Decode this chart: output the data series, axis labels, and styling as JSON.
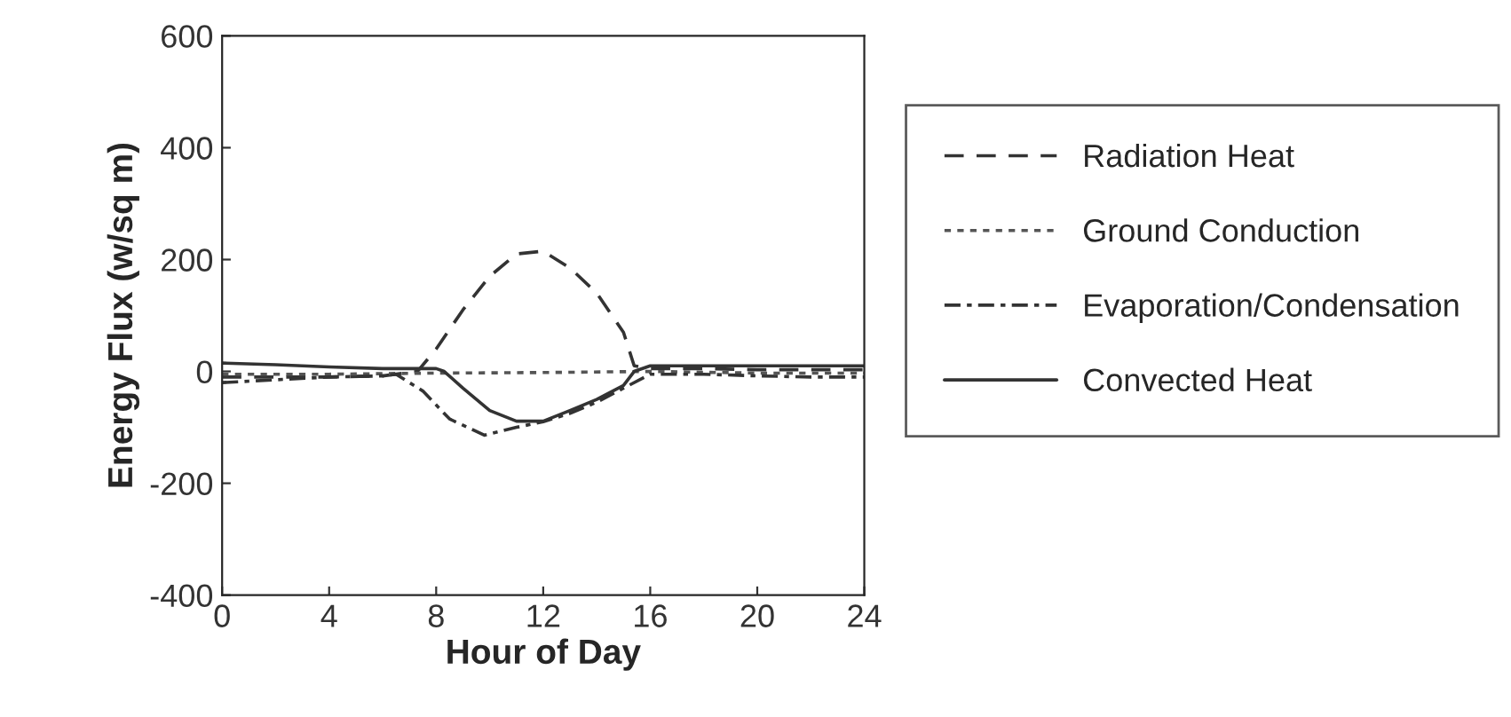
{
  "chart_data": {
    "type": "line",
    "xlabel": "Hour of Day",
    "ylabel": "Energy Flux (w/sq m)",
    "xlim": [
      0,
      24
    ],
    "xticks": [
      0,
      4,
      8,
      12,
      16,
      20,
      24
    ],
    "ylim": [
      -400,
      600
    ],
    "yticks": [
      -400,
      -200,
      0,
      200,
      400,
      600
    ],
    "grid": false,
    "legend": "right",
    "series": [
      {
        "name": "Radiation Heat",
        "color": "#333333",
        "line_style": "dashed",
        "x": [
          0,
          2,
          4,
          6,
          7.3,
          8,
          9,
          10,
          11,
          12,
          13,
          14,
          15,
          15.4,
          16,
          18,
          20,
          22,
          24
        ],
        "values": [
          -10,
          -10,
          -10,
          -8,
          0,
          40,
          110,
          170,
          210,
          215,
          185,
          140,
          70,
          10,
          5,
          5,
          3,
          3,
          3
        ]
      },
      {
        "name": "Ground Conduction",
        "color": "#555555",
        "line_style": "dotted",
        "x": [
          0,
          4,
          8,
          12,
          16,
          20,
          24
        ],
        "values": [
          -5,
          -5,
          -3,
          -2,
          0,
          -3,
          -3
        ]
      },
      {
        "name": "Evaporation/Condensation",
        "color": "#333333",
        "line_style": "dashdot",
        "x": [
          0,
          2,
          4,
          6,
          6.5,
          7.5,
          8.5,
          9.8,
          11,
          12,
          13,
          14,
          15,
          16,
          18,
          20,
          22,
          24
        ],
        "values": [
          -20,
          -15,
          -10,
          -8,
          -5,
          -35,
          -85,
          -114,
          -100,
          -90,
          -75,
          -55,
          -30,
          -5,
          -5,
          -8,
          -10,
          -10
        ]
      },
      {
        "name": "Convected Heat",
        "color": "#333333",
        "line_style": "solid",
        "x": [
          0,
          2,
          4,
          6,
          8,
          8.3,
          9,
          10,
          11,
          12,
          13,
          14,
          15,
          15.4,
          16,
          18,
          20,
          22,
          24
        ],
        "values": [
          15,
          12,
          8,
          5,
          5,
          0,
          -30,
          -70,
          -89,
          -89,
          -70,
          -50,
          -25,
          0,
          10,
          10,
          10,
          10,
          10
        ]
      }
    ]
  }
}
